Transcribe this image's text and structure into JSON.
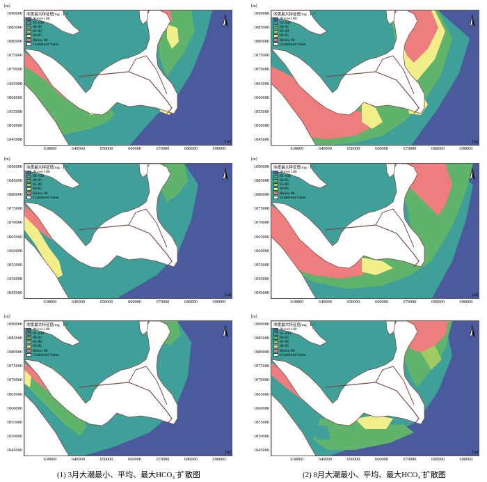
{
  "unit": "[m]",
  "legend": {
    "title": "浓度最大特征值/mg · L⁻¹",
    "entries": [
      {
        "label": "Above 100",
        "color": "#4b5a9c"
      },
      {
        "label": "95-100",
        "color": "#3f9f99"
      },
      {
        "label": "90-95",
        "color": "#5fb36b"
      },
      {
        "label": "85-90",
        "color": "#9fcc62"
      },
      {
        "label": "80-85",
        "color": "#f2ee8a"
      },
      {
        "label": "Below 80",
        "color": "#ee7d7d"
      },
      {
        "label": "Undefined Value",
        "color": "#ffffff"
      }
    ]
  },
  "y_ticks": [
    "1090000",
    "1085000",
    "1080000",
    "1075000",
    "1070000",
    "1065000",
    "1060000",
    "1055000",
    "1050000",
    "1045000"
  ],
  "x_ticks": [
    "630000",
    "640000",
    "650000",
    "660000",
    "670000",
    "680000",
    "690000"
  ],
  "panels": [
    {
      "id": "mar-min",
      "scenario": "red_edges"
    },
    {
      "id": "aug-min",
      "scenario": "red_wide"
    },
    {
      "id": "mar-avg",
      "scenario": "mostly_blue"
    },
    {
      "id": "aug-avg",
      "scenario": "red_mid"
    },
    {
      "id": "mar-max",
      "scenario": "mostly_blue2"
    },
    {
      "id": "aug-max",
      "scenario": "red_north"
    }
  ],
  "captions": {
    "left_pre": "(1) 3月大潮最小、平均、最大HCO",
    "left_sub": "3",
    "left_sup": "−",
    "left_post": "扩散图",
    "right_pre": "(2) 8月大潮最小、平均、最大HCO",
    "right_sub": "3",
    "right_sup": "−",
    "right_post": "扩散图"
  }
}
